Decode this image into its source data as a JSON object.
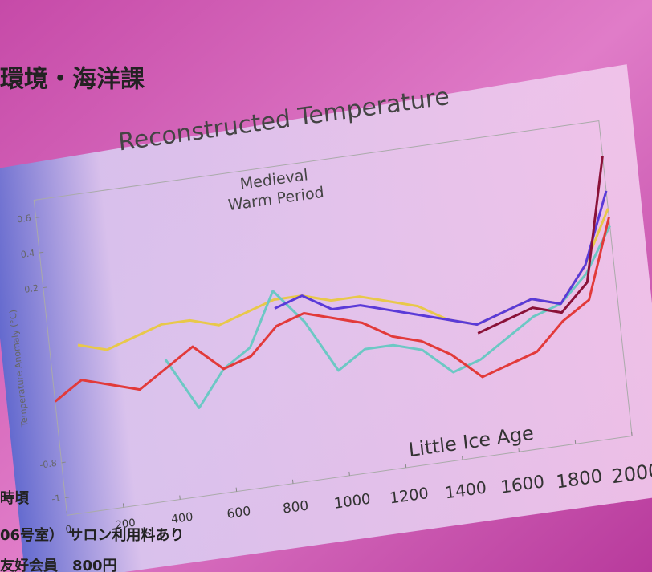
{
  "chart_data": {
    "type": "line",
    "title": "Reconstructed Temperature",
    "y_label": "Temperature Anomaly (°C)",
    "annotations": [
      "Medieval",
      "Warm Period",
      "Little Ice Age"
    ],
    "x": [
      0,
      100,
      200,
      300,
      400,
      500,
      600,
      700,
      800,
      900,
      1000,
      1100,
      1200,
      1300,
      1400,
      1500,
      1600,
      1700,
      1800,
      1900,
      2000
    ],
    "xlim": [
      0,
      2000
    ],
    "xticks": [
      0,
      200,
      400,
      600,
      800,
      1000,
      1200,
      1400,
      1600,
      1800,
      2000
    ],
    "ylim": [
      -1.1,
      0.7
    ],
    "yticks": [
      0.6,
      0.4,
      0.2,
      -0.8,
      -1
    ],
    "series": [
      {
        "color": "#e8c84a",
        "values": [
          null,
          -0.15,
          -0.2,
          -0.15,
          -0.1,
          -0.1,
          -0.15,
          -0.1,
          -0.05,
          -0.05,
          -0.1,
          -0.1,
          -0.15,
          -0.2,
          -0.3,
          -0.35,
          -0.3,
          -0.25,
          -0.3,
          -0.1,
          0.2
        ]
      },
      {
        "color": "#6cc8c4",
        "values": [
          null,
          null,
          null,
          null,
          -0.3,
          -0.6,
          -0.4,
          -0.3,
          0.0,
          -0.2,
          -0.5,
          -0.4,
          -0.4,
          -0.45,
          -0.6,
          -0.55,
          -0.45,
          -0.35,
          -0.3,
          -0.15,
          0.1
        ]
      },
      {
        "color": "#5a3ad8",
        "values": [
          null,
          null,
          null,
          null,
          null,
          null,
          null,
          null,
          -0.1,
          -0.05,
          -0.15,
          -0.15,
          -0.2,
          -0.25,
          -0.3,
          -0.35,
          -0.3,
          -0.25,
          -0.3,
          -0.1,
          0.3
        ]
      },
      {
        "color": "#e23a3a",
        "values": [
          -0.45,
          -0.35,
          -0.4,
          -0.45,
          -0.35,
          -0.25,
          -0.4,
          -0.35,
          -0.2,
          -0.15,
          -0.2,
          -0.25,
          -0.35,
          -0.4,
          -0.5,
          -0.65,
          -0.6,
          -0.55,
          -0.4,
          -0.3,
          0.15
        ]
      },
      {
        "color": "#8a1238",
        "values": [
          null,
          null,
          null,
          null,
          null,
          null,
          null,
          null,
          null,
          null,
          null,
          null,
          null,
          null,
          null,
          -0.4,
          -0.35,
          -0.3,
          -0.35,
          -0.2,
          0.5
        ]
      }
    ]
  },
  "overlay": {
    "texts": [
      "環境・海洋課",
      "時頃",
      "06号室） サロン利用料あり",
      "友好会員　800円"
    ]
  }
}
